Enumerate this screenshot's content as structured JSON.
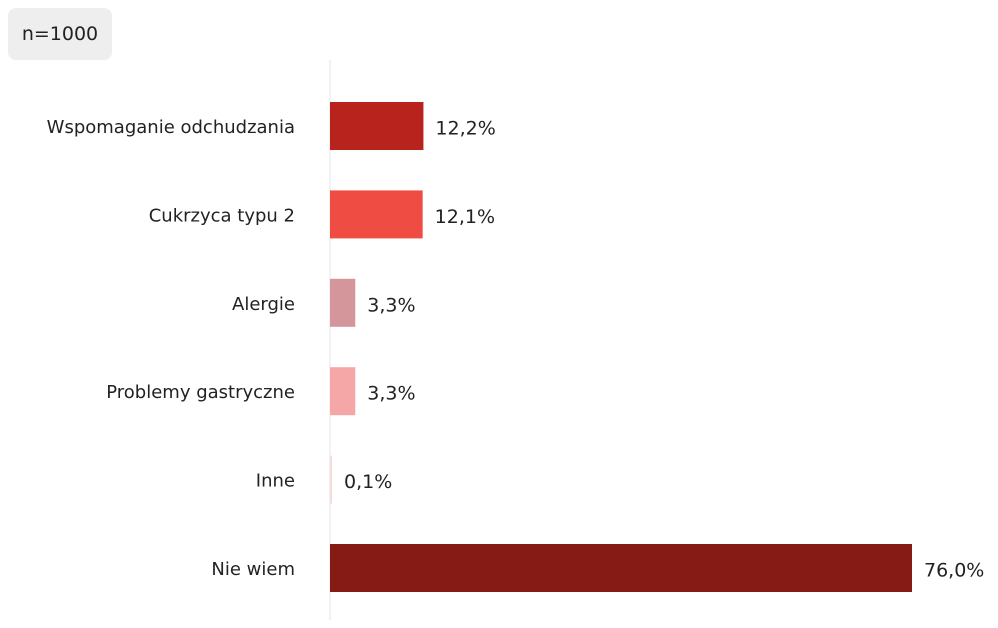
{
  "chart_data": {
    "type": "bar",
    "orientation": "horizontal",
    "annotation": "n=1000",
    "categories": [
      "Wspomaganie odchudzania",
      "Cukrzyca typu 2",
      "Alergie",
      "Problemy gastryczne",
      "Inne",
      "Nie wiem"
    ],
    "values": [
      12.2,
      12.1,
      3.3,
      3.3,
      0.1,
      76.0
    ],
    "value_labels": [
      "12,2%",
      "12,1%",
      "3,3%",
      "3,3%",
      "0,1%",
      "76,0%"
    ],
    "colors": [
      "#b8241d",
      "#ef4c43",
      "#d4959b",
      "#f5a7a7",
      "#f7dada",
      "#861a15"
    ],
    "xlim": [
      0,
      76
    ]
  }
}
